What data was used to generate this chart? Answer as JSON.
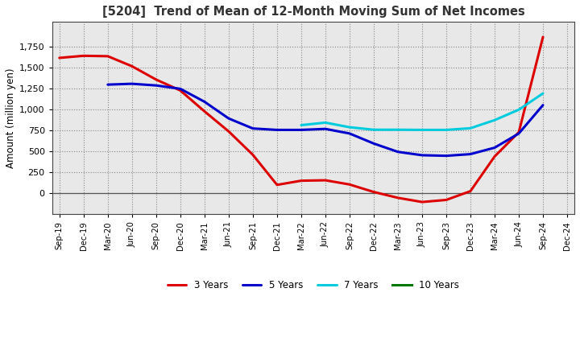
{
  "title": "[5204]  Trend of Mean of 12-Month Moving Sum of Net Incomes",
  "ylabel": "Amount (million yen)",
  "x_labels": [
    "Sep-19",
    "Dec-19",
    "Mar-20",
    "Jun-20",
    "Sep-20",
    "Dec-20",
    "Mar-21",
    "Jun-21",
    "Sep-21",
    "Dec-21",
    "Mar-22",
    "Jun-22",
    "Sep-22",
    "Dec-22",
    "Mar-23",
    "Jun-23",
    "Sep-23",
    "Dec-23",
    "Mar-24",
    "Jun-24",
    "Sep-24",
    "Dec-24"
  ],
  "series_3y": [
    1620,
    1645,
    1640,
    1520,
    1360,
    1230,
    980,
    740,
    460,
    100,
    150,
    155,
    105,
    15,
    -55,
    -105,
    -80,
    25,
    440,
    730,
    1870,
    null
  ],
  "series_5y": [
    null,
    null,
    1300,
    1310,
    1290,
    1250,
    1095,
    895,
    775,
    758,
    758,
    770,
    715,
    595,
    495,
    455,
    448,
    468,
    545,
    715,
    1055,
    null
  ],
  "series_7y": [
    null,
    null,
    null,
    null,
    null,
    null,
    null,
    null,
    null,
    null,
    815,
    845,
    790,
    760,
    760,
    758,
    758,
    778,
    875,
    1000,
    1195,
    null
  ],
  "series_10y": [
    null,
    null,
    null,
    null,
    null,
    null,
    null,
    null,
    null,
    null,
    null,
    null,
    null,
    null,
    null,
    null,
    null,
    null,
    null,
    null,
    null,
    null
  ],
  "color_3y": "#dd0000",
  "color_5y": "#0000cc",
  "color_7y": "#00ccdd",
  "color_10y": "#007700",
  "ylim": [
    -250,
    2050
  ],
  "yticks": [
    0,
    250,
    500,
    750,
    1000,
    1250,
    1500,
    1750
  ],
  "plot_bg": "#e8e8e8",
  "background_color": "#ffffff",
  "grid_color": "#aaaaaa",
  "legend_labels": [
    "3 Years",
    "5 Years",
    "7 Years",
    "10 Years"
  ]
}
